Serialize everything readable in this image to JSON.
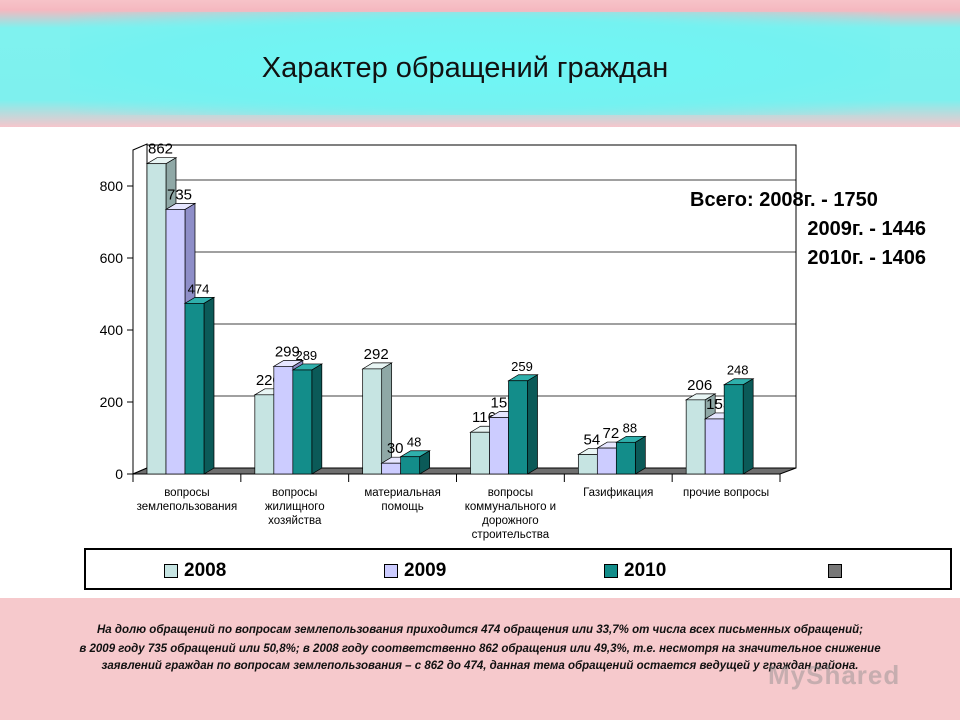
{
  "title": "Характер обращений граждан",
  "totals": {
    "line1": "Всего:  2008г.  - 1750",
    "line2": "2009г.  - 1446",
    "line3": "2010г.  - 1406"
  },
  "legend": [
    {
      "label": "2008",
      "color": "#c6e4e2"
    },
    {
      "label": "2009",
      "color": "#ccccff"
    },
    {
      "label": "2010",
      "color": "#138d8a"
    },
    {
      "label": "",
      "color": "#777777"
    }
  ],
  "notes": [
    "На долю обращений по вопросам землепользования приходится 474 обращения  или 33,7% от числа всех письменных обращений;",
    "в 2009 году 735 обращений или 50,8%; в 2008 году соответственно 862 обращения  или 49,3%, т.е. несмотря на значительное снижение",
    "заявлений граждан по вопросам землепользования – с 862 до 474, данная тема обращений остается ведущей у граждан района."
  ],
  "watermark": "MyShared",
  "chart_data": {
    "type": "bar",
    "categories": [
      [
        "вопросы",
        "землепользования"
      ],
      [
        "вопросы",
        "жилищного",
        "хозяйства"
      ],
      [
        "материальная",
        "помощь"
      ],
      [
        "вопросы",
        "коммунального и",
        "дорожного",
        "строительства"
      ],
      [
        "Газификация"
      ],
      [
        "прочие вопросы"
      ]
    ],
    "series": [
      {
        "name": "2008",
        "values": [
          862,
          220,
          292,
          116,
          54,
          206
        ],
        "color": "#c6e4e2"
      },
      {
        "name": "2009",
        "values": [
          735,
          299,
          30,
          157,
          72,
          153
        ],
        "color": "#ccccff"
      },
      {
        "name": "2010",
        "values": [
          474,
          289,
          48,
          259,
          88,
          248
        ],
        "color": "#138d8a"
      }
    ],
    "yticks": [
      "0",
      "200",
      "400",
      "600",
      "800"
    ],
    "ylim": [
      0,
      880
    ],
    "grid": true
  }
}
